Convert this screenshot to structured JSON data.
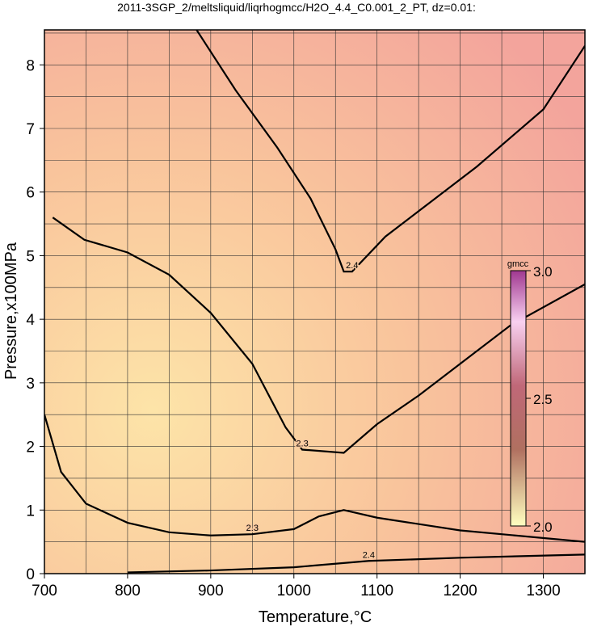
{
  "chart_data": {
    "type": "contour",
    "title": "2011-3SGP_2/meltsliquid/liqrhogmcc/H2O_4.4_C0.001_2_PT, dz=0.01:",
    "x_label": "Temperature,°C",
    "y_label": "Pressure,x100MPa",
    "xlim": [
      700,
      1350
    ],
    "ylim": [
      0,
      8.55
    ],
    "xticks": [
      700,
      800,
      900,
      1000,
      1100,
      1200,
      1300
    ],
    "yticks": [
      0,
      1,
      2,
      3,
      4,
      5,
      6,
      7,
      8
    ],
    "xgrid": [
      750,
      800,
      850,
      900,
      950,
      1000,
      1050,
      1100,
      1150,
      1200,
      1250,
      1300
    ],
    "ygrid": [
      0.5,
      1,
      1.5,
      2,
      2.5,
      3,
      3.5,
      4,
      4.5,
      5,
      5.5,
      6,
      6.5,
      7,
      7.5,
      8,
      8.5
    ],
    "contours": [
      {
        "level": 2.4,
        "color": "#000000",
        "x": [
          883,
          930,
          980,
          1020,
          1050,
          1060,
          1070,
          1110,
          1160,
          1220,
          1300,
          1350
        ],
        "y": [
          8.55,
          7.6,
          6.7,
          5.9,
          5.1,
          4.75,
          4.75,
          5.3,
          5.8,
          6.4,
          7.3,
          8.3
        ]
      },
      {
        "level": 2.3,
        "color": "#000000",
        "x": [
          710,
          748,
          800,
          850,
          900,
          950,
          990,
          1010,
          1060,
          1100,
          1150,
          1200,
          1260,
          1350
        ],
        "y": [
          5.6,
          5.25,
          5.05,
          4.7,
          4.1,
          3.3,
          2.3,
          1.95,
          1.9,
          2.35,
          2.8,
          3.3,
          3.9,
          4.55
        ]
      },
      {
        "level": 2.3,
        "color": "#000000",
        "x": [
          700,
          720,
          750,
          800,
          850,
          900,
          950,
          1000,
          1030,
          1060,
          1100,
          1200,
          1350
        ],
        "y": [
          2.5,
          1.6,
          1.1,
          0.8,
          0.65,
          0.6,
          0.62,
          0.7,
          0.9,
          1.0,
          0.88,
          0.68,
          0.5
        ]
      },
      {
        "level": 2.4,
        "color": "#000000",
        "x": [
          800,
          900,
          1000,
          1090,
          1200,
          1350
        ],
        "y": [
          0.02,
          0.05,
          0.1,
          0.2,
          0.25,
          0.3
        ]
      }
    ],
    "colorbar": {
      "label": "gmcc",
      "lim": [
        2,
        3
      ],
      "ticks": [
        {
          "value": 2,
          "label": "2.0"
        },
        2.5,
        {
          "value": 3,
          "label": "3.0"
        }
      ]
    }
  }
}
